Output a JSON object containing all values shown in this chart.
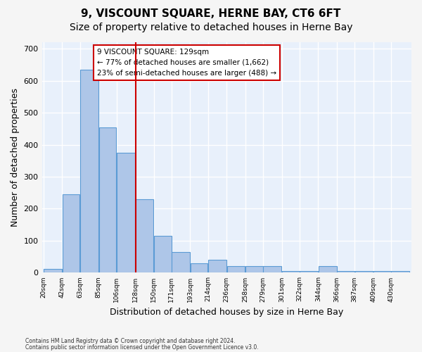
{
  "title": "9, VISCOUNT SQUARE, HERNE BAY, CT6 6FT",
  "subtitle": "Size of property relative to detached houses in Herne Bay",
  "xlabel": "Distribution of detached houses by size in Herne Bay",
  "ylabel": "Number of detached properties",
  "footnote1": "Contains HM Land Registry data © Crown copyright and database right 2024.",
  "footnote2": "Contains public sector information licensed under the Open Government Licence v3.0.",
  "bar_edges": [
    20,
    42,
    63,
    85,
    106,
    128,
    150,
    171,
    193,
    214,
    236,
    258,
    279,
    301,
    322,
    344,
    366,
    387,
    409,
    430,
    452
  ],
  "bar_heights": [
    13,
    245,
    635,
    455,
    375,
    230,
    115,
    65,
    30,
    40,
    20,
    20,
    20,
    5,
    5,
    20,
    5,
    5,
    5,
    5
  ],
  "bar_color": "#aec6e8",
  "bar_edgecolor": "#5b9bd5",
  "red_line_x": 129,
  "annotation_text": "9 VISCOUNT SQUARE: 129sqm\n← 77% of detached houses are smaller (1,662)\n23% of semi-detached houses are larger (488) →",
  "annotation_box_color": "#ffffff",
  "annotation_box_edgecolor": "#cc0000",
  "ylim": [
    0,
    720
  ],
  "yticks": [
    0,
    100,
    200,
    300,
    400,
    500,
    600,
    700
  ],
  "plot_background": "#e8f0fb",
  "grid_color": "#ffffff",
  "title_fontsize": 11,
  "subtitle_fontsize": 10,
  "xlabel_fontsize": 9,
  "ylabel_fontsize": 9
}
